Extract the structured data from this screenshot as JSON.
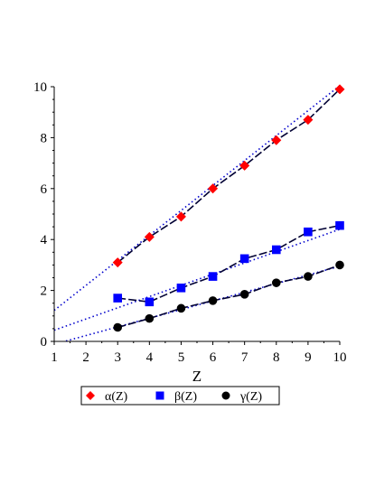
{
  "chart_data": {
    "type": "line",
    "xlabel": "Z",
    "ylabel": "",
    "xlim": [
      1,
      10
    ],
    "ylim": [
      0,
      10
    ],
    "xticks": [
      1,
      2,
      3,
      4,
      5,
      6,
      7,
      8,
      9,
      10
    ],
    "yticks": [
      0,
      2,
      4,
      6,
      8,
      10
    ],
    "x": [
      3,
      4,
      5,
      6,
      7,
      8,
      9,
      10
    ],
    "legend_position": "bottom",
    "series": [
      {
        "name": "α(Z)",
        "marker": "diamond",
        "color": "#ff0000",
        "values": [
          3.1,
          4.1,
          4.9,
          6.0,
          6.9,
          7.9,
          8.7,
          9.9
        ],
        "fit": {
          "slope": 0.98,
          "intercept": 0.24
        }
      },
      {
        "name": "β(Z)",
        "marker": "square",
        "color": "#0000ff",
        "values": [
          1.7,
          1.55,
          2.1,
          2.55,
          3.25,
          3.6,
          4.3,
          4.55
        ],
        "fit": {
          "slope": 0.44,
          "intercept": 0.0
        }
      },
      {
        "name": "γ(Z)",
        "marker": "circle",
        "color": "#000000",
        "values": [
          0.55,
          0.9,
          1.3,
          1.6,
          1.85,
          2.3,
          2.55,
          3.0
        ],
        "fit": {
          "slope": 0.34,
          "intercept": -0.45
        }
      }
    ],
    "line_style": "long-dash",
    "line_color": "#000033",
    "fit_line_style": "dotted",
    "fit_line_color": "#0000cc"
  }
}
